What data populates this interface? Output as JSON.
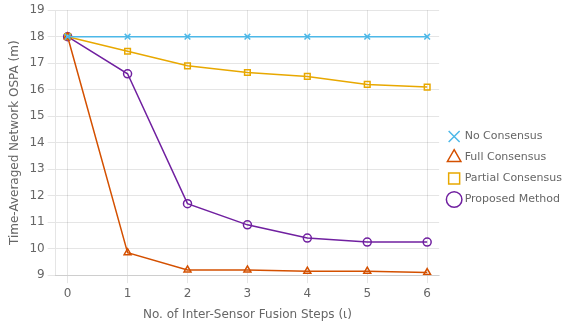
{
  "chart_data": {
    "type": "line",
    "x": [
      0,
      1,
      2,
      3,
      4,
      5,
      6
    ],
    "series": [
      {
        "name": "No Consensus",
        "color": "#4db8e8",
        "marker": "x",
        "values": [
          18.0,
          18.0,
          18.0,
          18.0,
          18.0,
          18.0,
          18.0
        ]
      },
      {
        "name": "Full Consensus",
        "color": "#d45000",
        "marker": "triangle",
        "values": [
          18.0,
          9.85,
          9.2,
          9.2,
          9.15,
          9.15,
          9.1
        ]
      },
      {
        "name": "Partial Consensus",
        "color": "#e8a800",
        "marker": "square",
        "values": [
          18.0,
          17.45,
          16.9,
          16.65,
          16.5,
          16.2,
          16.1
        ]
      },
      {
        "name": "Proposed Method",
        "color": "#7020a0",
        "marker": "circle",
        "values": [
          18.0,
          16.6,
          11.7,
          10.9,
          10.4,
          10.25,
          10.25
        ]
      }
    ],
    "x_label": "No. of Inter-Sensor Fusion Steps (ι)",
    "y_label": "Time-Averaged Network OSPA (m)",
    "xlim": [
      -0.2,
      6.2
    ],
    "ylim": [
      9,
      19
    ],
    "xticks": [
      0,
      1,
      2,
      3,
      4,
      5,
      6
    ],
    "yticks": [
      9,
      10,
      11,
      12,
      13,
      14,
      15,
      16,
      17,
      18,
      19
    ],
    "grid": true,
    "legend": "right"
  }
}
